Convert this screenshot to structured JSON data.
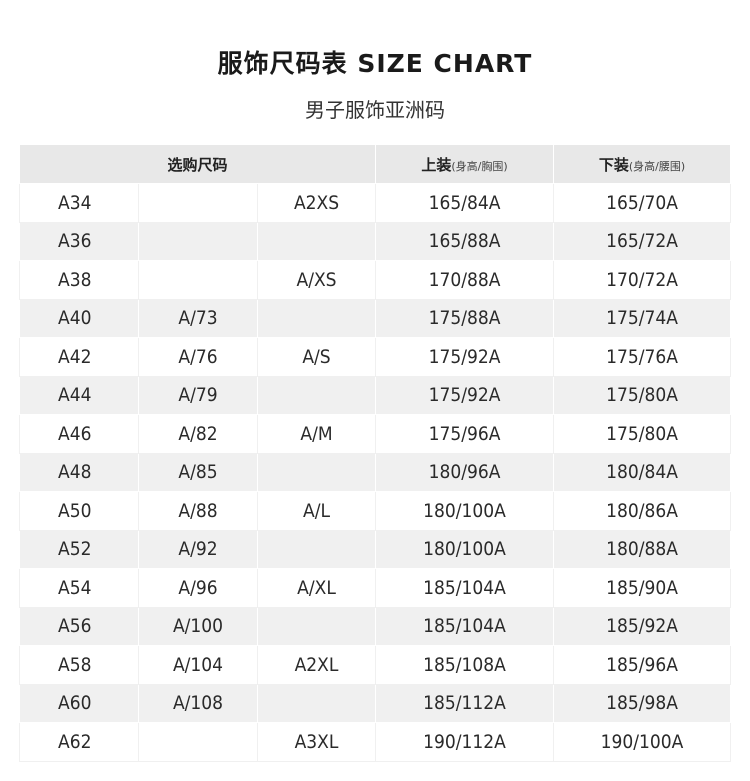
{
  "title": "服饰尺码表 SIZE CHART",
  "subtitle": "男子服饰亚洲码",
  "headers": {
    "select_size": "选购尺码",
    "top": "上装",
    "top_note": "(身高/胸围)",
    "bottom": "下装",
    "bottom_note": "(身高/腰围)"
  },
  "rows": [
    [
      "A34",
      "",
      "A2XS",
      "165/84A",
      "165/70A"
    ],
    [
      "A36",
      "",
      "",
      "165/88A",
      "165/72A"
    ],
    [
      "A38",
      "",
      "A/XS",
      "170/88A",
      "170/72A"
    ],
    [
      "A40",
      "A/73",
      "",
      "175/88A",
      "175/74A"
    ],
    [
      "A42",
      "A/76",
      "A/S",
      "175/92A",
      "175/76A"
    ],
    [
      "A44",
      "A/79",
      "",
      "175/92A",
      "175/80A"
    ],
    [
      "A46",
      "A/82",
      "A/M",
      "175/96A",
      "175/80A"
    ],
    [
      "A48",
      "A/85",
      "",
      "180/96A",
      "180/84A"
    ],
    [
      "A50",
      "A/88",
      "A/L",
      "180/100A",
      "180/86A"
    ],
    [
      "A52",
      "A/92",
      "",
      "180/100A",
      "180/88A"
    ],
    [
      "A54",
      "A/96",
      "A/XL",
      "185/104A",
      "185/90A"
    ],
    [
      "A56",
      "A/100",
      "",
      "185/104A",
      "185/92A"
    ],
    [
      "A58",
      "A/104",
      "A2XL",
      "185/108A",
      "185/96A"
    ],
    [
      "A60",
      "A/108",
      "",
      "185/112A",
      "185/98A"
    ],
    [
      "A62",
      "",
      "A3XL",
      "190/112A",
      "190/100A"
    ]
  ]
}
